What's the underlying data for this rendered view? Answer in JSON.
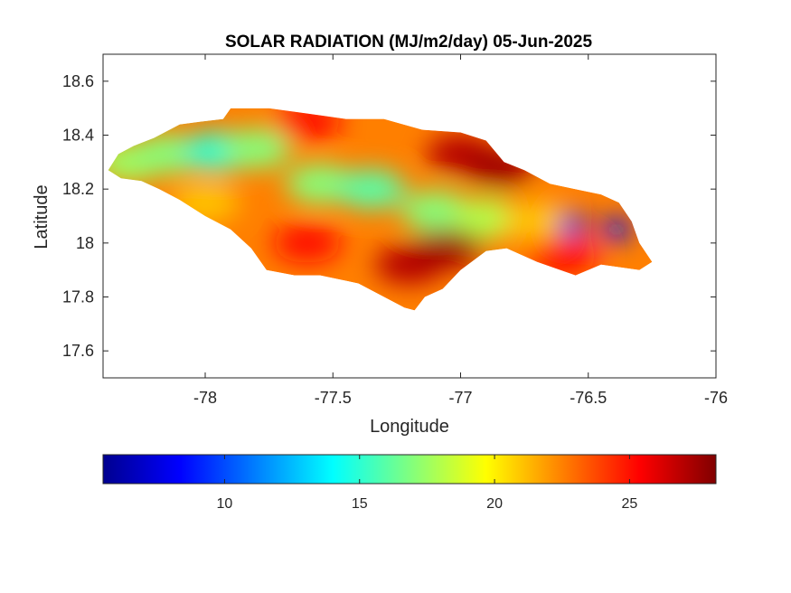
{
  "chart_data": {
    "type": "heatmap",
    "title": "SOLAR RADIATION (MJ/m2/day) 05-Jun-2025",
    "xlabel": "Longitude",
    "ylabel": "Latitude",
    "xlim": [
      -78.4,
      -76
    ],
    "ylim": [
      17.5,
      18.7
    ],
    "xticks": [
      -78,
      -77.5,
      -77,
      -76.5,
      -76
    ],
    "xtick_labels": [
      "-78",
      "-77.5",
      "-77",
      "-76.5",
      "-76"
    ],
    "yticks": [
      17.6,
      17.8,
      18,
      18.2,
      18.4,
      18.6
    ],
    "ytick_labels": [
      "17.6",
      "17.8",
      "18",
      "18.2",
      "18.4",
      "18.6"
    ],
    "colorbar": {
      "colormap": "jet",
      "clim": [
        5.5,
        28.2
      ],
      "ticks": [
        10,
        15,
        20,
        25
      ],
      "tick_labels": [
        "10",
        "15",
        "20",
        "25"
      ],
      "orientation": "horizontal",
      "location": "below"
    },
    "grid": false,
    "region_outline": [
      [
        -78.38,
        18.27
      ],
      [
        -78.34,
        18.33
      ],
      [
        -78.28,
        18.36
      ],
      [
        -78.2,
        18.39
      ],
      [
        -78.1,
        18.44
      ],
      [
        -78.02,
        18.45
      ],
      [
        -77.93,
        18.46
      ],
      [
        -77.9,
        18.5
      ],
      [
        -77.75,
        18.5
      ],
      [
        -77.6,
        18.48
      ],
      [
        -77.45,
        18.46
      ],
      [
        -77.3,
        18.46
      ],
      [
        -77.15,
        18.42
      ],
      [
        -77.0,
        18.41
      ],
      [
        -76.9,
        18.38
      ],
      [
        -76.83,
        18.3
      ],
      [
        -76.75,
        18.27
      ],
      [
        -76.65,
        18.22
      ],
      [
        -76.55,
        18.2
      ],
      [
        -76.45,
        18.18
      ],
      [
        -76.38,
        18.15
      ],
      [
        -76.33,
        18.08
      ],
      [
        -76.3,
        18.0
      ],
      [
        -76.25,
        17.93
      ],
      [
        -76.3,
        17.9
      ],
      [
        -76.45,
        17.92
      ],
      [
        -76.55,
        17.88
      ],
      [
        -76.7,
        17.93
      ],
      [
        -76.82,
        17.98
      ],
      [
        -76.9,
        17.97
      ],
      [
        -77.0,
        17.9
      ],
      [
        -77.07,
        17.83
      ],
      [
        -77.14,
        17.8
      ],
      [
        -77.18,
        17.75
      ],
      [
        -77.22,
        17.76
      ],
      [
        -77.3,
        17.8
      ],
      [
        -77.4,
        17.85
      ],
      [
        -77.55,
        17.88
      ],
      [
        -77.65,
        17.88
      ],
      [
        -77.76,
        17.9
      ],
      [
        -77.82,
        17.98
      ],
      [
        -77.9,
        18.05
      ],
      [
        -78.0,
        18.1
      ],
      [
        -78.1,
        18.16
      ],
      [
        -78.18,
        18.2
      ],
      [
        -78.25,
        18.23
      ],
      [
        -78.33,
        18.24
      ]
    ],
    "field_features": [
      {
        "lon": -78.3,
        "lat": 18.3,
        "value": 17.5
      },
      {
        "lon": -78.15,
        "lat": 18.33,
        "value": 17
      },
      {
        "lon": -77.95,
        "lat": 18.34,
        "value": 15
      },
      {
        "lon": -77.8,
        "lat": 18.35,
        "value": 17
      },
      {
        "lon": -77.55,
        "lat": 18.22,
        "value": 17
      },
      {
        "lon": -77.35,
        "lat": 18.2,
        "value": 16
      },
      {
        "lon": -77.1,
        "lat": 18.12,
        "value": 17
      },
      {
        "lon": -76.9,
        "lat": 18.09,
        "value": 18
      },
      {
        "lon": -76.7,
        "lat": 18.08,
        "value": 21
      },
      {
        "lon": -76.56,
        "lat": 18.07,
        "value": 8
      },
      {
        "lon": -76.39,
        "lat": 18.05,
        "value": 8.5
      },
      {
        "lon": -77.0,
        "lat": 18.33,
        "value": 27
      },
      {
        "lon": -76.85,
        "lat": 18.28,
        "value": 27.5
      },
      {
        "lon": -77.2,
        "lat": 17.92,
        "value": 27
      },
      {
        "lon": -77.05,
        "lat": 17.98,
        "value": 27.5
      },
      {
        "lon": -77.6,
        "lat": 18.0,
        "value": 25
      },
      {
        "lon": -76.6,
        "lat": 17.95,
        "value": 25
      },
      {
        "lon": -77.6,
        "lat": 18.45,
        "value": 25
      },
      {
        "lon": -78.0,
        "lat": 18.15,
        "value": 21
      }
    ]
  }
}
